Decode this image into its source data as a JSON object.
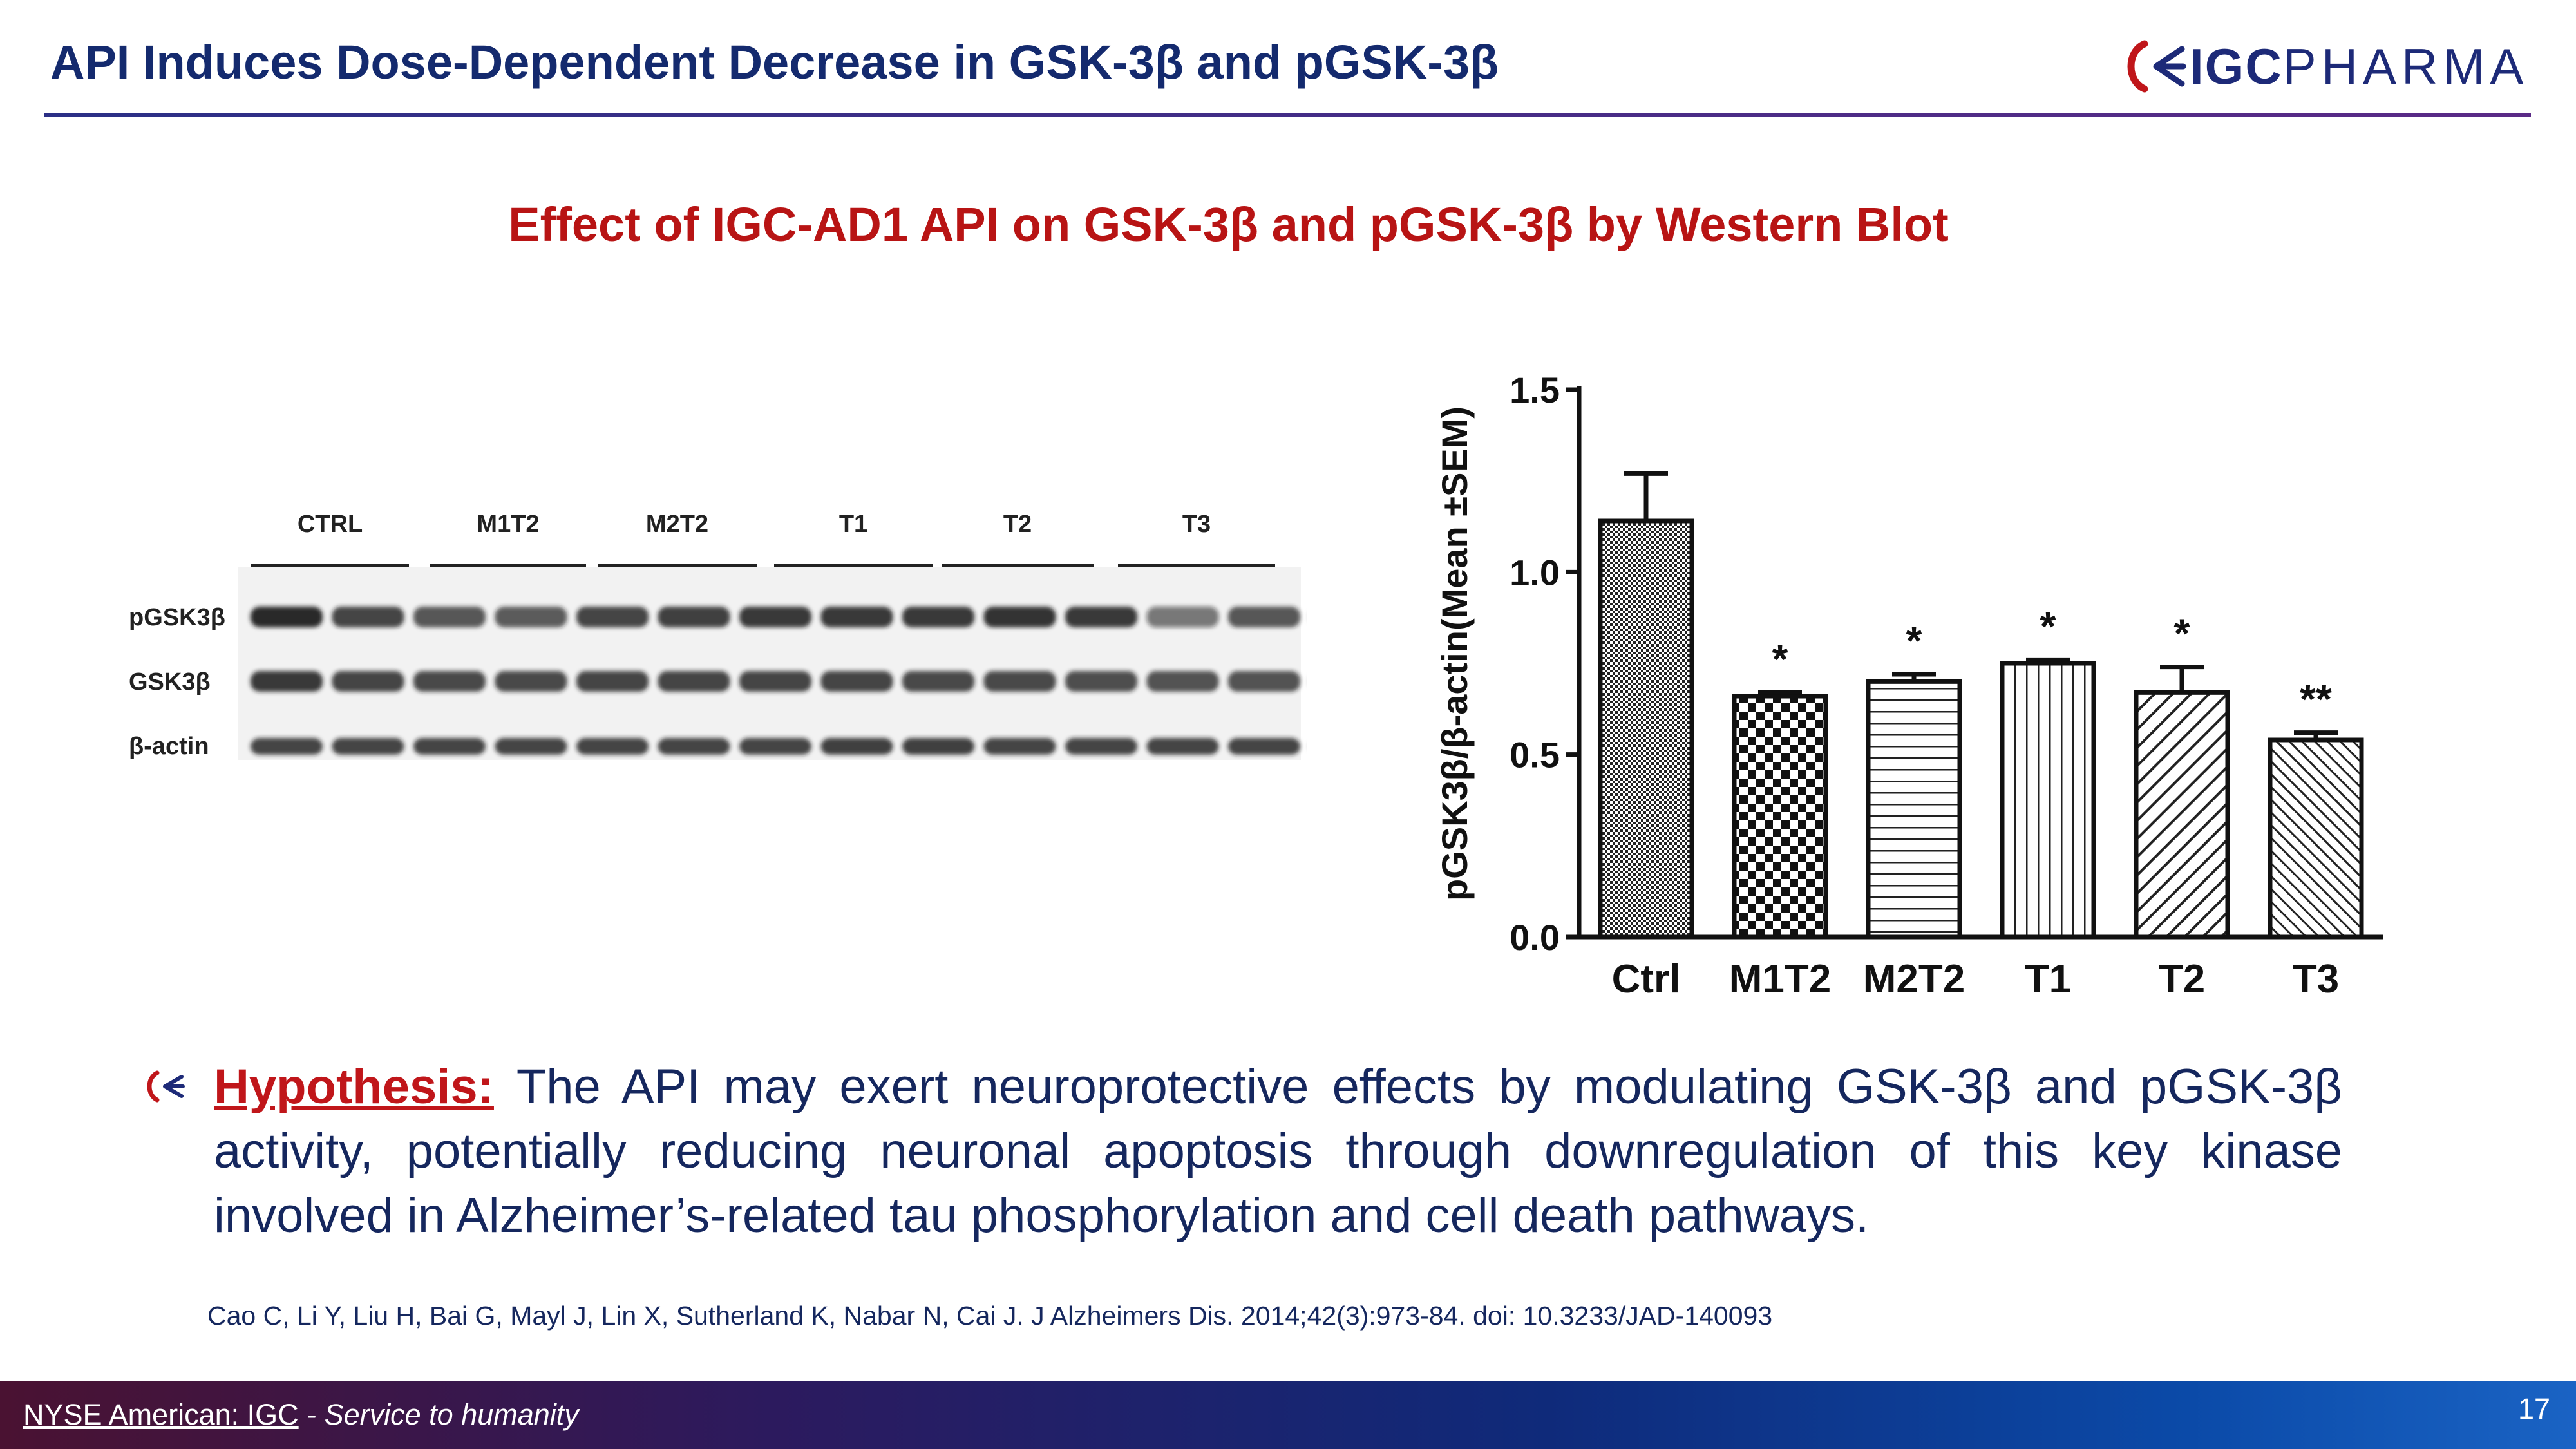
{
  "slide": {
    "title": "API Induces Dose-Dependent Decrease in GSK-3β and pGSK-3β",
    "subtitle": "Effect of IGC-AD1 API on GSK-3β and pGSK-3β by Western Blot",
    "logo": {
      "bold": "IGC",
      "light": "PHARMA",
      "icon": "igc-wave-icon"
    },
    "page_number": "17"
  },
  "western_blot": {
    "lanes": [
      "CTRL",
      "M1T2",
      "M2T2",
      "T1",
      "T2",
      "T3"
    ],
    "rows": [
      "pGSK3β",
      "GSK3β",
      "β-actin"
    ]
  },
  "chart_data": {
    "type": "bar",
    "categories": [
      "Ctrl",
      "M1T2",
      "M2T2",
      "T1",
      "T2",
      "T3"
    ],
    "values": [
      1.14,
      0.66,
      0.7,
      0.75,
      0.67,
      0.54
    ],
    "errors": [
      0.13,
      0.01,
      0.02,
      0.01,
      0.07,
      0.02
    ],
    "significance": [
      "",
      "*",
      "*",
      "*",
      "*",
      "**"
    ],
    "patterns": [
      "fine-check",
      "checker",
      "horizontal",
      "vertical",
      "diagonal",
      "diagonal-dense"
    ],
    "ylabel": "pGSK3β/β-actin(Mean ±SEM)",
    "xlabel": "",
    "ylim": [
      0,
      1.5
    ],
    "yticks": [
      "0.0",
      "0.5",
      "1.0",
      "1.5"
    ]
  },
  "hypothesis": {
    "label": "Hypothesis:",
    "text": " The API may exert neuroprotective effects by modulating GSK-3β and pGSK-3β activity, potentially reducing neuronal apoptosis through downregulation of this key kinase involved in Alzheimer’s-related tau phosphorylation and cell death pathways."
  },
  "citation": "Cao C, Li Y, Liu H, Bai G, Mayl J, Lin X, Sutherland K, Nabar N, Cai J. J Alzheimers Dis. 2014;42(3):973-84. doi: 10.3233/JAD-140093",
  "footer": {
    "exchange": "NYSE American:  IGC",
    "tagline": " - Service to humanity"
  },
  "colors": {
    "title": "#142a6e",
    "accent": "#b81414",
    "body": "#15275e"
  }
}
